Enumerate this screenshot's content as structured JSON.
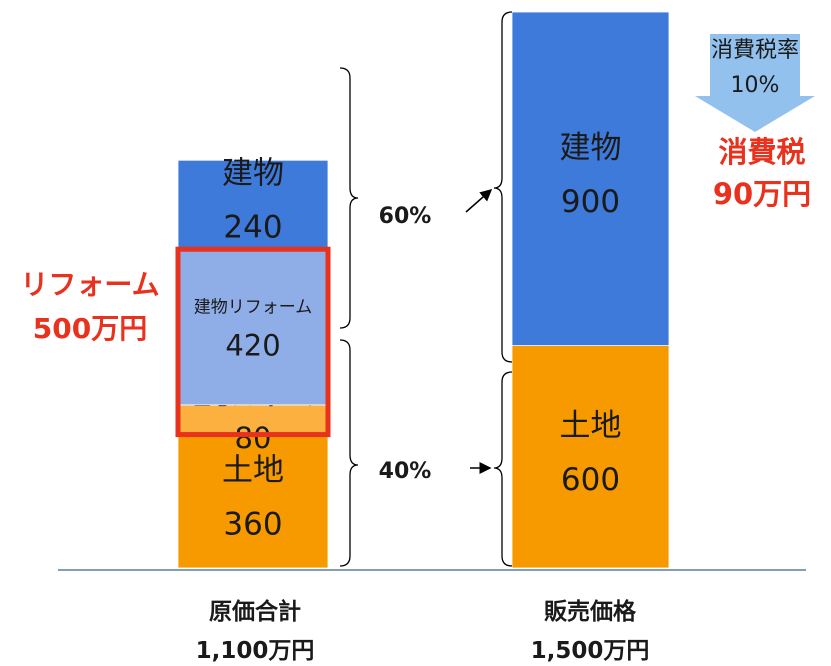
{
  "chart_data": {
    "type": "bar",
    "stacked": true,
    "categories": [
      "原価合計",
      "販売価格"
    ],
    "category_totals": [
      "1,100万円",
      "1,500万円"
    ],
    "bars": [
      {
        "category": "原価合計",
        "total": 1100,
        "segments": [
          {
            "name": "土地",
            "value": 360,
            "color": "#f79a00"
          },
          {
            "name": "土地リフォーム",
            "value": 80,
            "color": "#fbb040"
          },
          {
            "name": "建物リフォーム",
            "value": 420,
            "color": "#8faee8"
          },
          {
            "name": "建物",
            "value": 240,
            "color": "#3e7ad9"
          }
        ]
      },
      {
        "category": "販売価格",
        "total": 1500,
        "segments": [
          {
            "name": "土地",
            "value": 600,
            "color": "#f79a00"
          },
          {
            "name": "建物",
            "value": 900,
            "color": "#3e7ad9"
          }
        ]
      }
    ],
    "annotations": {
      "reform_label": [
        "リフォーム",
        "500万円"
      ],
      "pct_upper": "60%",
      "pct_lower": "40%",
      "tax_rate_label": [
        "消費税率",
        "10%"
      ],
      "tax_label": [
        "消費税",
        "90万円"
      ]
    },
    "colors": {
      "highlight": "#e8321e",
      "tax_arrow": "#92c1ee",
      "axis": "#5b7f9e"
    }
  }
}
